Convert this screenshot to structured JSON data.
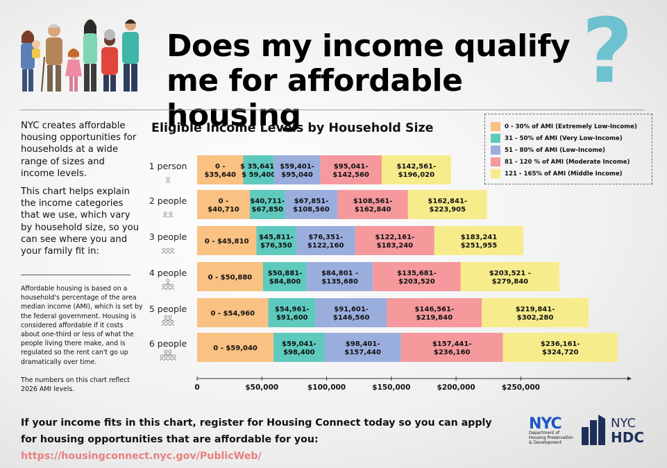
{
  "headline": "Does my income qualify me for affordable housing",
  "question_mark": "?",
  "intro": {
    "p1": "NYC creates affordable housing opportunities for households at a wide range of sizes and income levels.",
    "p2": "This chart helps explain the income categories that we use, which vary by household size, so you can see where you and your family fit in:",
    "p3": "Affordable housing is based on a household's percentage of the area median income (AMI), which is set by the federal government. Housing is considered affordable if it costs about one-third or less of what the people living there make, and is regulated so the rent can't go up dramatically over time.",
    "p4": "The numbers on this chart reflect 2026 AMI levels."
  },
  "legend": [
    {
      "label": "0 - 30% of AMI (Extremely Low-Income)",
      "color": "#f9c182"
    },
    {
      "label": "31 - 50% of AMI (Very Low-Income)",
      "color": "#5ecabd"
    },
    {
      "label": "51 - 80% of AMI (Low-Income)",
      "color": "#9aaede"
    },
    {
      "label": "81 - 120 % of AMI (Moderate Income)",
      "color": "#f5999c"
    },
    {
      "label": "121 - 165% of AMI (Middle Income)",
      "color": "#f7ec8b"
    }
  ],
  "chart_data": {
    "type": "bar",
    "orientation": "horizontal-stacked",
    "title": "Eligible Income Levels by Household Size",
    "xlabel": "",
    "ylabel": "",
    "xlim": [
      0,
      320000
    ],
    "x_ticks": [
      {
        "value": 0,
        "label": "0"
      },
      {
        "value": 50000,
        "label": "$50,000"
      },
      {
        "value": 100000,
        "label": "$100,000"
      },
      {
        "value": 150000,
        "label": "$150,000"
      },
      {
        "value": 200000,
        "label": "$200,000"
      },
      {
        "value": 250000,
        "label": "$250,000"
      }
    ],
    "series_colors": [
      "#f9c182",
      "#5ecabd",
      "#9aaede",
      "#f5999c",
      "#f7ec8b"
    ],
    "rows": [
      {
        "category": "1 person",
        "icon": "person-1-icon",
        "bounds": [
          35640,
          59400,
          95040,
          142560,
          196020
        ],
        "labels": [
          "0 -\n$35,640",
          "$ 35,641-\n$ 59,400",
          "$59,401-\n$95,040",
          "$95,041-\n$142,560",
          "$142,561-\n$196,020"
        ]
      },
      {
        "category": "2 people",
        "icon": "people-2-icon",
        "bounds": [
          40710,
          67850,
          108560,
          162840,
          223905
        ],
        "labels": [
          "0 -\n$40,710",
          "$40,711-\n$67,850",
          "$67,851-\n$108,560",
          "$108,561-\n$162,840",
          "$162,841-\n$223,905"
        ]
      },
      {
        "category": "3 people",
        "icon": "people-3-icon",
        "bounds": [
          45810,
          76350,
          122160,
          183240,
          251955
        ],
        "labels": [
          "0 - $45,810",
          "$45,811-\n$76,350",
          "$76,351-\n$122,160",
          "$122,161-\n$183,240",
          "$183,241\n$251,955"
        ]
      },
      {
        "category": "4 people",
        "icon": "people-4-icon",
        "bounds": [
          50880,
          84800,
          135680,
          203520,
          279840
        ],
        "labels": [
          "0 - $50,880",
          "$50,881-\n$84,800",
          "$84,801 -\n$135,680",
          "$135,681-\n$203,520",
          "$203,521 -\n$279,840"
        ]
      },
      {
        "category": "5 people",
        "icon": "people-5-icon",
        "bounds": [
          54960,
          91600,
          146560,
          219840,
          302280
        ],
        "labels": [
          "0 - $54,960",
          "$54,961-\n$91,600",
          "$91,601-\n$146,560",
          "$146,561-\n$219,840",
          "$219,841-\n$302,280"
        ]
      },
      {
        "category": "6 people",
        "icon": "people-6-icon",
        "bounds": [
          59040,
          98400,
          157440,
          236160,
          324720
        ],
        "labels": [
          "0 - $59,040",
          "$59,041-\n$98,400",
          "$98,401-\n$157,440",
          "$157,441-\n$236,160",
          "$236,161-\n$324,720"
        ]
      }
    ]
  },
  "cta": {
    "line1": "If your income fits in this chart, register for Housing Connect today so you can apply",
    "line2": "for housing opportunities that are affordable for you: ",
    "link": "https://housingconnect.nyc.gov/PublicWeb/"
  },
  "logos": {
    "nyc_mark": "NYC",
    "nyc_dept": "Department of\nHousing Preservation\n& Development",
    "hdc_top": "NYC",
    "hdc_bottom": "HDC",
    "nyc_color": "#1a56c4",
    "hdc_color": "#1d2f57"
  }
}
